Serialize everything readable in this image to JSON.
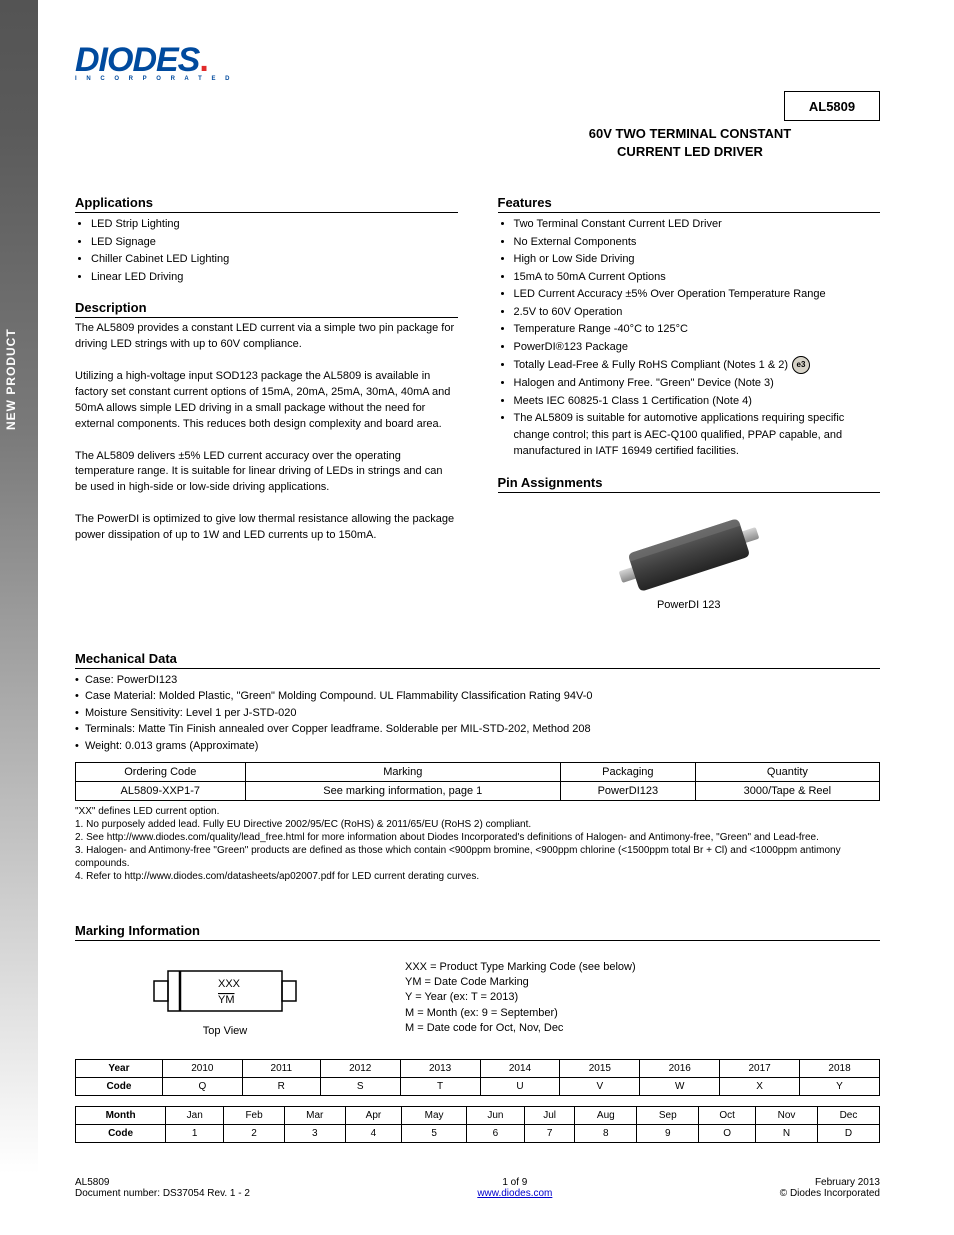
{
  "sidebar": {
    "text": "NEW PRODUCT"
  },
  "header": {
    "logo_main": "DIODES",
    "logo_sub": "I N C O R P O R A T E D",
    "part_number": "AL5809",
    "title_line1": "60V TWO TERMINAL CONSTANT",
    "title_line2": "CURRENT LED DRIVER"
  },
  "sections": {
    "description": {
      "heading": "Description",
      "body": "The AL5809 provides a constant LED current via a simple two pin package for driving LED strings with up to 60V compliance.\n\nUtilizing a high-voltage input SOD123 package the AL5809 is available in factory set constant current options of 15mA, 20mA, 25mA, 30mA, 40mA and 50mA allows simple LED driving in a small package without the need for external components. This reduces both design complexity and board area.\n\nThe AL5809 delivers ±5% LED current accuracy over the operating temperature range. It is suitable for linear driving of LEDs in strings and can be used in high-side or low-side driving applications.\n\nThe PowerDI is optimized to give low thermal resistance allowing the package power dissipation of up to 1W and LED currents up to 150mA."
    },
    "pin_assignments": {
      "heading": "Pin Assignments",
      "caption": "PowerDI 123"
    },
    "applications": {
      "heading": "Applications",
      "items": [
        "LED Strip Lighting",
        "LED Signage",
        "Chiller Cabinet LED Lighting",
        "Linear LED Driving"
      ]
    },
    "features": {
      "heading": "Features",
      "items": [
        "Two Terminal Constant Current LED Driver",
        "No External Components",
        "High or Low Side Driving",
        "15mA to 50mA Current Options",
        "LED Current Accuracy ±5% Over Operation Temperature Range",
        "2.5V to 60V Operation",
        "Temperature Range -40°C to 125°C",
        "PowerDI®123 Package",
        "Totally Lead-Free & Fully RoHS Compliant (Notes 1 & 2)",
        "Halogen and Antimony Free. \"Green\" Device (Note 3)",
        "Meets IEC 60825-1 Class 1 Certification (Note 4)",
        "The AL5809 is suitable for automotive applications requiring specific change control; this part is AEC-Q100 qualified, PPAP capable, and manufactured in IATF 16949 certified facilities."
      ],
      "e3_badge": "e3"
    },
    "mechanical": {
      "heading": "Mechanical Data",
      "list": [
        {
          "k": "Case:",
          "v": "PowerDI123"
        },
        {
          "k": "Case Material:",
          "v": "Molded Plastic, \"Green\" Molding Compound. UL Flammability Classification Rating 94V-0"
        },
        {
          "k": "Moisture Sensitivity:",
          "v": "Level 1 per J-STD-020"
        },
        {
          "k": "Terminals:",
          "v": "Matte Tin Finish annealed over Copper leadframe. Solderable per MIL-STD-202, Method 208"
        },
        {
          "k": "Weight:",
          "v": "0.013 grams (Approximate)"
        }
      ],
      "table": {
        "headers": [
          "Ordering Code",
          "Marking",
          "Packaging",
          "Quantity"
        ],
        "row": [
          "AL5809-XXP1-7",
          "See marking information, page 1",
          "PowerDI123",
          "3000/Tape & Reel"
        ]
      },
      "notes": [
        "\"XX\" defines LED current option.",
        "1. No purposely added lead. Fully EU Directive 2002/95/EC (RoHS) & 2011/65/EU (RoHS 2) compliant.",
        "2. See http://www.diodes.com/quality/lead_free.html for more information about Diodes Incorporated's definitions of Halogen- and Antimony-free, \"Green\" and Lead-free.",
        "3. Halogen- and Antimony-free \"Green\" products are defined as those which contain <900ppm bromine, <900ppm chlorine (<1500ppm total Br + Cl) and <1000ppm antimony compounds.",
        "4. Refer to http://www.diodes.com/datasheets/ap02007.pdf for LED current derating curves."
      ]
    },
    "marking": {
      "heading": "Marking Information",
      "diagram_caption": "Top View",
      "code_label": "XXX",
      "date_label": "YM",
      "legend": [
        "XXX = Product Type Marking Code (see below)",
        "YM = Date Code Marking",
        "Y = Year (ex: T = 2013)",
        "M = Month (ex: 9 = September)",
        "M = Date code for Oct, Nov, Dec"
      ],
      "year_table": {
        "header_label": "Year",
        "years": [
          "2010",
          "2011",
          "2012",
          "2013",
          "2014",
          "2015",
          "2016",
          "2017",
          "2018"
        ],
        "code_label": "Code",
        "codes": [
          "Q",
          "R",
          "S",
          "T",
          "U",
          "V",
          "W",
          "X",
          "Y"
        ]
      },
      "month_table": {
        "header_label": "Month",
        "months": [
          "Jan",
          "Feb",
          "Mar",
          "Apr",
          "May",
          "Jun",
          "Jul",
          "Aug",
          "Sep",
          "Oct",
          "Nov",
          "Dec"
        ],
        "code_label": "Code",
        "codes": [
          "1",
          "2",
          "3",
          "4",
          "5",
          "6",
          "7",
          "8",
          "9",
          "O",
          "N",
          "D"
        ]
      }
    }
  },
  "footer": {
    "left1": "AL5809",
    "left2": "Document number: DS37054 Rev. 1 - 2",
    "center1": "1 of 9",
    "center2": "www.diodes.com",
    "right1": "February 2013",
    "right2": "© Diodes Incorporated"
  },
  "colors": {
    "brand_blue": "#004a9e",
    "brand_red": "#e12a2a",
    "link_blue": "#0000cc"
  }
}
